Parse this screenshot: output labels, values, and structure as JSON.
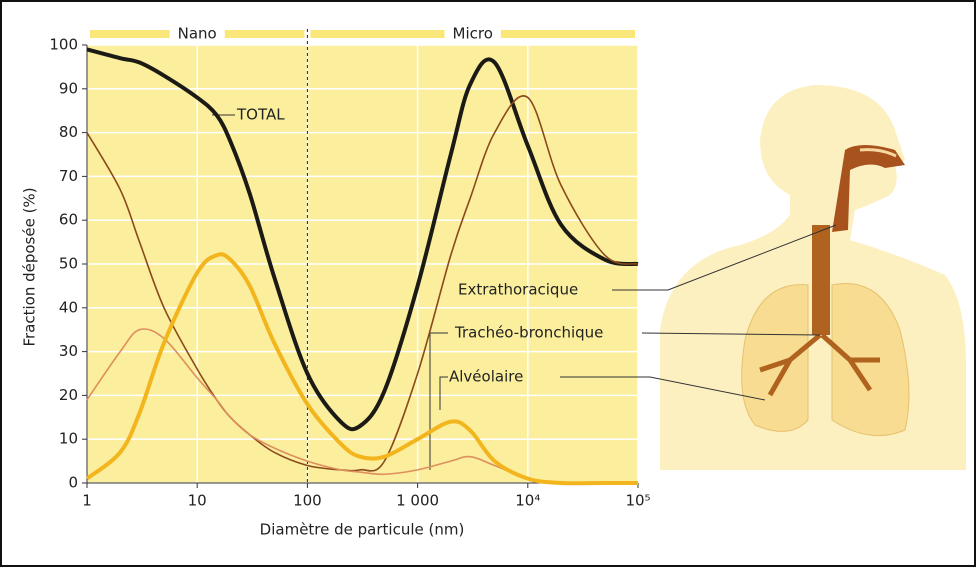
{
  "chart_data": {
    "type": "line",
    "xlabel": "Diamètre de particule (nm)",
    "ylabel": "Fraction déposée (%)",
    "log_x": true,
    "x": [
      1,
      2,
      3,
      5,
      10,
      15,
      20,
      30,
      50,
      100,
      200,
      300,
      500,
      1000,
      2000,
      3000,
      5000,
      10000,
      20000,
      50000,
      100000
    ],
    "series": [
      {
        "name": "TOTAL",
        "color": "#1c1a14",
        "width": 4,
        "values": [
          99,
          97,
          96,
          93,
          88,
          84,
          78,
          66,
          47,
          25,
          14,
          13,
          21,
          45,
          75,
          91,
          96,
          77,
          59,
          51,
          50
        ]
      },
      {
        "name": "Extrathoracique",
        "color": "#8b4a1c",
        "width": 1.6,
        "values": [
          80,
          67,
          55,
          40,
          26,
          19,
          15,
          11,
          7,
          4,
          3,
          3,
          5,
          25,
          52,
          65,
          80,
          88,
          68,
          52,
          50
        ]
      },
      {
        "name": "Trachéo-bronchique",
        "color": "#de8f5e",
        "width": 1.6,
        "values": [
          19,
          30,
          35,
          33,
          24,
          19,
          15,
          11,
          8,
          5,
          3,
          2.5,
          2,
          3,
          5,
          6,
          4,
          1,
          0,
          0,
          0
        ]
      },
      {
        "name": "Alvéolaire",
        "color": "#f3b51d",
        "width": 4,
        "values": [
          1,
          7,
          16,
          32,
          48,
          52,
          51,
          45,
          32,
          18,
          9,
          6,
          6,
          10,
          14,
          12,
          5,
          1,
          0,
          0,
          0
        ]
      }
    ],
    "xlim": [
      1,
      100000
    ],
    "xticks": [
      1,
      10,
      100,
      {
        "value": 1000,
        "label": "1 000"
      },
      {
        "value": 10000,
        "label": "10⁴"
      },
      {
        "value": 100000,
        "label": "10⁵"
      }
    ],
    "ylim": [
      0,
      100
    ],
    "yticks": [
      0,
      10,
      20,
      30,
      40,
      50,
      60,
      70,
      80,
      90,
      100
    ],
    "grid": true,
    "regions": [
      {
        "label": "Nano",
        "from": 1,
        "to": 100
      },
      {
        "label": "Micro",
        "from": 100,
        "to": 100000
      }
    ]
  }
}
